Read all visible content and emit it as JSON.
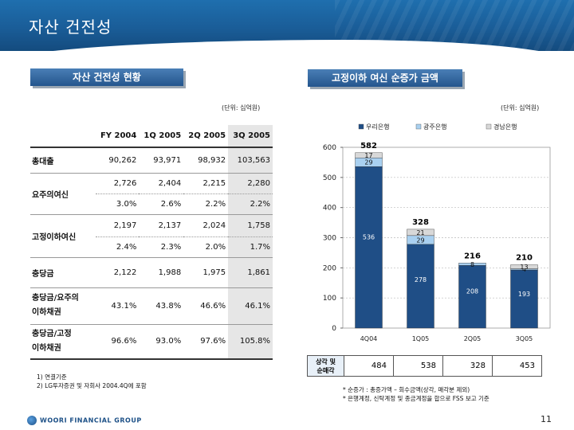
{
  "page": {
    "title": "자산 건전성",
    "page_number": "11",
    "logo_text": "WOORI FINANCIAL GROUP"
  },
  "left": {
    "section_title": "자산 건전성 현황",
    "unit": "(단위: 십억원)",
    "columns": [
      "FY 2004",
      "1Q 2005",
      "2Q 2005",
      "3Q 2005"
    ],
    "rows": [
      {
        "label": "총대출",
        "values": [
          "90,262",
          "93,971",
          "98,932",
          "103,563"
        ]
      },
      {
        "label": "요주의여신",
        "values": [
          "2,726",
          "2,404",
          "2,215",
          "2,280"
        ],
        "ratios": [
          "3.0%",
          "2.6%",
          "2.2%",
          "2.2%"
        ]
      },
      {
        "label": "고정이하여신",
        "values": [
          "2,197",
          "2,137",
          "2,024",
          "1,758"
        ],
        "ratios": [
          "2.4%",
          "2.3%",
          "2.0%",
          "1.7%"
        ]
      },
      {
        "label": "충당금",
        "values": [
          "2,122",
          "1,988",
          "1,975",
          "1,861"
        ]
      },
      {
        "label_line1": "충당금/요주의",
        "label_line2": "이하채권",
        "values": [
          "43.1%",
          "43.8%",
          "46.6%",
          "46.1%"
        ]
      },
      {
        "label_line1": "충당금/고정",
        "label_line2": "이하채권",
        "values": [
          "96.6%",
          "93.0%",
          "97.6%",
          "105.8%"
        ]
      }
    ],
    "notes": [
      "1) 연결기준",
      "2) LG투자증권 및 자회사 2004.4Q에 포함"
    ]
  },
  "right": {
    "section_title": "고정이하 여신 순증가 금액",
    "unit": "(단위: 십억원)",
    "nim_label_line1": "상각 및",
    "nim_label_line2": "순매각",
    "nim_values": [
      "484",
      "538",
      "328",
      "453"
    ],
    "notes": [
      "* 순증가 : 총증가액 – 회수금액(상각, 매각분 제외)",
      "* 은행계정, 신탁계정 및 종금계정을 합으로 FSS 보고 기준"
    ]
  },
  "chart_data": {
    "type": "bar",
    "stacked": true,
    "categories": [
      "4Q04",
      "1Q05",
      "2Q05",
      "3Q05"
    ],
    "series": [
      {
        "name": "우리은행",
        "values": [
          536,
          278,
          208,
          193
        ],
        "color": "#1f4e86"
      },
      {
        "name": "광주은행",
        "values": [
          29,
          29,
          8,
          4
        ],
        "color": "#a9d0f0"
      },
      {
        "name": "경남은행",
        "values": [
          17,
          21,
          0,
          13
        ],
        "color": "#d8d8d8"
      }
    ],
    "totals": [
      582,
      328,
      216,
      210
    ],
    "segment_labels": [
      [
        "536",
        "29",
        "17"
      ],
      [
        "278",
        "29",
        "21"
      ],
      [
        "208",
        "8",
        ""
      ],
      [
        "193",
        "4",
        "13"
      ]
    ],
    "ylim": [
      0,
      600
    ],
    "yticks": [
      "0",
      "100",
      "200",
      "300",
      "400",
      "500",
      "600"
    ],
    "legend_position": "top"
  }
}
